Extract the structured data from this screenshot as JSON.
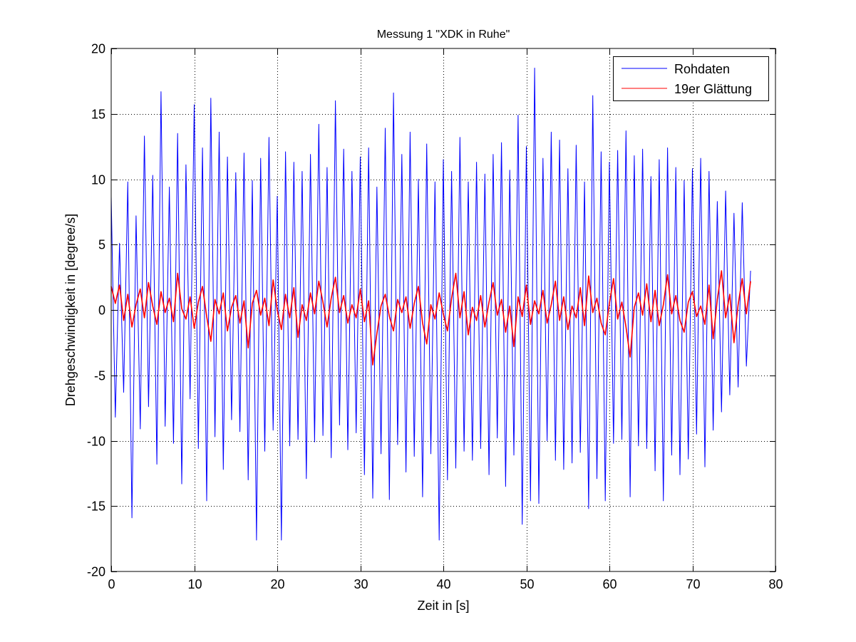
{
  "chart_data": {
    "type": "line",
    "title": "Messung 1 \"XDK in Ruhe\"",
    "xlabel": "Zeit in [s]",
    "ylabel": "Drehgeschwindigkeit in [degree/s]",
    "xlim": [
      0,
      80
    ],
    "ylim": [
      -20,
      20
    ],
    "x_range_data": [
      0,
      77
    ],
    "xticks": [
      0,
      10,
      20,
      30,
      40,
      50,
      60,
      70,
      80
    ],
    "yticks": [
      -20,
      -15,
      -10,
      -5,
      0,
      5,
      10,
      15,
      20
    ],
    "grid": true,
    "legend_position": "top-right",
    "series": [
      {
        "name": "Rohdaten",
        "color": "#0000ff",
        "values": [
          8.7,
          -8.2,
          5.1,
          -6.3,
          9.8,
          -15.9,
          7.2,
          -9.1,
          13.3,
          -7.4,
          10.3,
          -11.8,
          16.7,
          -8.9,
          9.4,
          -10.2,
          13.5,
          -13.3,
          11.1,
          -6.8,
          15.7,
          -10.6,
          12.4,
          -14.6,
          16.2,
          -9.7,
          13.6,
          -12.2,
          11.7,
          -8.4,
          10.5,
          -9.3,
          12.0,
          -13.0,
          9.9,
          -17.6,
          11.6,
          -10.8,
          13.2,
          -9.2,
          8.7,
          -17.6,
          12.1,
          -10.4,
          11.3,
          -9.9,
          10.6,
          -12.9,
          11.9,
          -10.1,
          14.2,
          -9.6,
          10.9,
          -11.3,
          16.0,
          -8.8,
          12.3,
          -10.7,
          10.6,
          -9.4,
          11.7,
          -12.6,
          12.4,
          -14.4,
          9.4,
          -11.0,
          13.9,
          -14.5,
          16.6,
          -10.3,
          11.9,
          -12.4,
          13.6,
          -11.2,
          10.0,
          -14.3,
          12.7,
          -11.0,
          9.8,
          -17.6,
          11.5,
          -13.0,
          10.6,
          -12.1,
          13.2,
          -10.8,
          9.8,
          -11.5,
          11.3,
          -10.6,
          10.4,
          -12.6,
          11.9,
          -9.8,
          12.8,
          -13.5,
          10.7,
          -11.1,
          14.9,
          -16.4,
          12.5,
          -14.6,
          18.5,
          -14.8,
          11.6,
          -10.0,
          13.6,
          -11.5,
          13.0,
          -12.2,
          10.8,
          -11.7,
          12.6,
          -10.9,
          9.8,
          -15.2,
          16.4,
          -12.9,
          12.1,
          -14.6,
          11.3,
          -10.2,
          12.2,
          -9.9,
          13.7,
          -14.3,
          11.8,
          -10.4,
          12.3,
          -10.6,
          10.2,
          -12.3,
          11.5,
          -14.6,
          12.4,
          -11.1,
          10.9,
          -12.6,
          9.9,
          -11.4,
          10.8,
          -9.5,
          11.6,
          -12.0,
          10.6,
          -9.2,
          8.3,
          -7.8,
          9.1,
          -6.5,
          7.4,
          -5.9,
          8.2,
          -4.3,
          3.0
        ]
      },
      {
        "name": "19er Glättung",
        "color": "#ff0000",
        "values": [
          1.8,
          0.5,
          1.9,
          -0.8,
          1.2,
          -1.3,
          0.4,
          1.6,
          -0.6,
          2.1,
          0.3,
          -1.1,
          1.4,
          -0.2,
          0.9,
          -0.9,
          2.8,
          0.1,
          -0.7,
          1.0,
          -1.4,
          0.6,
          1.8,
          -0.5,
          -2.4,
          0.8,
          -0.3,
          1.3,
          -1.6,
          0.2,
          1.1,
          -1.0,
          0.7,
          -2.9,
          0.5,
          1.5,
          -0.4,
          0.9,
          -1.2,
          2.3,
          0.0,
          -1.5,
          1.2,
          -0.6,
          1.7,
          -2.1,
          0.4,
          -0.8,
          1.3,
          -0.3,
          2.2,
          0.6,
          -1.3,
          0.9,
          2.5,
          -0.2,
          1.1,
          -1.0,
          0.4,
          -0.6,
          1.6,
          -0.9,
          0.7,
          -4.2,
          -1.8,
          0.3,
          1.2,
          -0.5,
          -1.6,
          0.8,
          -0.2,
          1.0,
          -1.4,
          0.5,
          1.8,
          -1.0,
          -2.6,
          0.4,
          -0.7,
          1.3,
          -0.3,
          -1.6,
          0.9,
          2.8,
          -0.6,
          1.4,
          -1.9,
          0.2,
          -0.8,
          1.1,
          -1.3,
          0.6,
          2.1,
          -0.4,
          0.8,
          -1.7,
          0.3,
          -2.8,
          1.0,
          -0.5,
          1.9,
          -1.1,
          0.7,
          -0.3,
          1.5,
          -1.0,
          0.4,
          2.2,
          -0.8,
          1.0,
          -1.5,
          0.3,
          -0.6,
          1.7,
          -1.2,
          2.6,
          -0.2,
          0.9,
          -1.0,
          -1.9,
          0.5,
          2.4,
          -0.7,
          0.6,
          -1.3,
          -3.6,
          0.2,
          1.3,
          -0.4,
          2.0,
          -0.9,
          1.5,
          -1.2,
          0.4,
          2.7,
          -0.3,
          1.1,
          -0.8,
          -1.7,
          0.6,
          1.4,
          -0.5,
          0.3,
          -1.1,
          1.9,
          -2.2,
          0.8,
          3.0,
          -0.6,
          1.2,
          -2.5,
          0.4,
          2.4,
          -0.3,
          2.2
        ]
      }
    ]
  }
}
